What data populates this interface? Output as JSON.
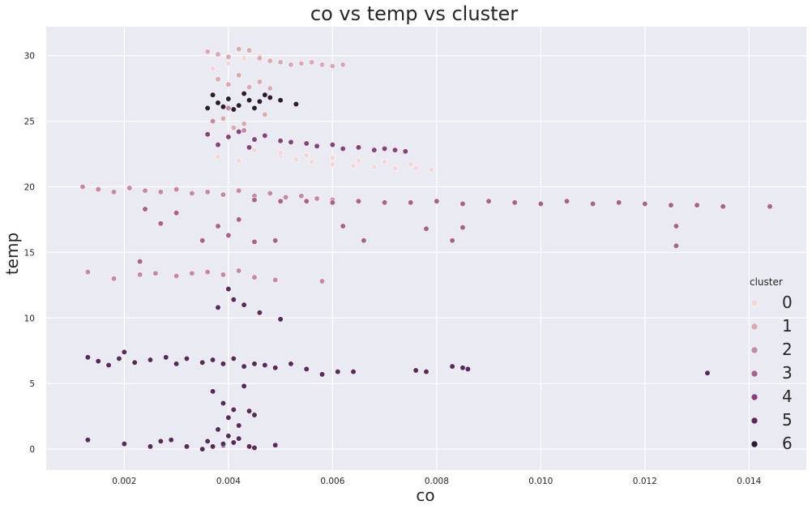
{
  "chart_data": {
    "type": "scatter",
    "title": "co vs temp vs cluster",
    "xlabel": "co",
    "ylabel": "temp",
    "xlim": [
      0.0005,
      0.0151
    ],
    "ylim": [
      -1.6,
      32.2
    ],
    "x_ticks": [
      0.002,
      0.004,
      0.006,
      0.008,
      0.01,
      0.012,
      0.014
    ],
    "x_tick_labels": [
      "0.002",
      "0.004",
      "0.006",
      "0.008",
      "0.010",
      "0.012",
      "0.014"
    ],
    "y_ticks": [
      0,
      5,
      10,
      15,
      20,
      25,
      30
    ],
    "y_tick_labels": [
      "0",
      "5",
      "10",
      "15",
      "20",
      "25",
      "30"
    ],
    "grid": true,
    "legend": {
      "title": "cluster",
      "placement": "right",
      "entries": [
        "0",
        "1",
        "2",
        "3",
        "4",
        "5",
        "6"
      ]
    },
    "colors": {
      "background": "#eaeaf2",
      "grid": "#ffffff",
      "0": "#f2d6d8",
      "1": "#dca9b2",
      "2": "#c48a9f",
      "3": "#a8628d",
      "4": "#83447c",
      "5": "#582a5c",
      "6": "#2d1b34"
    },
    "series": [
      {
        "name": "0",
        "x": [
          0.0037,
          0.004,
          0.0043,
          0.0046,
          0.005,
          0.0053,
          0.0056,
          0.006,
          0.0064,
          0.0068,
          0.0072,
          0.0076,
          0.0079,
          0.0045,
          0.005,
          0.0055,
          0.006,
          0.0065,
          0.007,
          0.0075,
          0.0042,
          0.0038
        ],
        "y": [
          29.0,
          29.4,
          29.8,
          30.0,
          22.4,
          22.1,
          21.9,
          21.7,
          21.6,
          21.5,
          21.4,
          21.4,
          21.3,
          22.8,
          22.6,
          22.4,
          22.2,
          22.0,
          21.9,
          21.7,
          22.0,
          22.3
        ]
      },
      {
        "name": "1",
        "x": [
          0.0036,
          0.0038,
          0.004,
          0.0042,
          0.0044,
          0.0046,
          0.0048,
          0.005,
          0.0052,
          0.0054,
          0.0056,
          0.0058,
          0.006,
          0.0062,
          0.0038,
          0.004,
          0.0042,
          0.0044,
          0.0046,
          0.0048,
          0.0039,
          0.0043,
          0.0047,
          0.0041
        ],
        "y": [
          30.3,
          30.1,
          29.9,
          30.5,
          30.4,
          29.8,
          29.6,
          29.5,
          29.3,
          29.4,
          29.5,
          29.3,
          29.2,
          29.3,
          28.2,
          27.8,
          28.5,
          27.6,
          28.0,
          27.5,
          25.2,
          24.8,
          25.5,
          24.5
        ]
      },
      {
        "name": "2",
        "x": [
          0.0012,
          0.0015,
          0.0018,
          0.0021,
          0.0024,
          0.0027,
          0.003,
          0.0033,
          0.0036,
          0.0039,
          0.0042,
          0.0045,
          0.0048,
          0.0051,
          0.0054,
          0.0057,
          0.006,
          0.004,
          0.0037,
          0.0043,
          0.0013,
          0.0018,
          0.0023,
          0.0026,
          0.003,
          0.0033,
          0.0036,
          0.0039,
          0.0042,
          0.0045,
          0.0049,
          0.0058
        ],
        "y": [
          20.0,
          19.8,
          19.6,
          19.9,
          19.7,
          19.6,
          19.8,
          19.5,
          19.6,
          19.4,
          19.7,
          19.3,
          19.5,
          19.2,
          19.3,
          19.1,
          19.0,
          26.0,
          25.0,
          24.3,
          13.5,
          13.0,
          13.3,
          13.4,
          13.2,
          13.4,
          13.5,
          13.3,
          13.6,
          13.1,
          12.9,
          12.8
        ]
      },
      {
        "name": "3",
        "x": [
          0.0045,
          0.005,
          0.0055,
          0.006,
          0.0065,
          0.007,
          0.0075,
          0.008,
          0.0085,
          0.009,
          0.0095,
          0.01,
          0.0105,
          0.011,
          0.0115,
          0.012,
          0.0125,
          0.013,
          0.0135,
          0.0144,
          0.0126,
          0.0126,
          0.0085,
          0.0083,
          0.0078,
          0.0066,
          0.0062,
          0.004,
          0.0042,
          0.0038,
          0.0035,
          0.003,
          0.0027,
          0.0024,
          0.0045,
          0.0049,
          0.0023
        ],
        "y": [
          19.0,
          18.9,
          18.9,
          18.8,
          18.9,
          18.8,
          18.8,
          18.9,
          18.7,
          18.9,
          18.8,
          18.7,
          18.9,
          18.7,
          18.8,
          18.7,
          18.6,
          18.6,
          18.5,
          18.5,
          17.0,
          15.5,
          16.9,
          15.9,
          16.8,
          15.9,
          17.0,
          16.3,
          17.5,
          17.0,
          15.9,
          18.0,
          17.2,
          18.3,
          15.8,
          15.9,
          14.3
        ]
      },
      {
        "name": "4",
        "x": [
          0.0036,
          0.004,
          0.0045,
          0.005,
          0.0055,
          0.006,
          0.0065,
          0.007,
          0.0072,
          0.0074,
          0.0042,
          0.0047,
          0.0052,
          0.0057,
          0.0062,
          0.0068,
          0.0038,
          0.0044
        ],
        "y": [
          24.0,
          23.8,
          23.6,
          23.5,
          23.3,
          23.2,
          23.0,
          22.9,
          22.8,
          22.7,
          24.2,
          23.9,
          23.4,
          23.1,
          22.9,
          22.8,
          23.2,
          23.0
        ]
      },
      {
        "name": "5",
        "x": [
          0.0013,
          0.0015,
          0.0017,
          0.0019,
          0.002,
          0.0022,
          0.0025,
          0.0028,
          0.003,
          0.0032,
          0.0035,
          0.0037,
          0.0039,
          0.0041,
          0.0043,
          0.0045,
          0.0047,
          0.0049,
          0.0052,
          0.0055,
          0.0058,
          0.0061,
          0.0064,
          0.0076,
          0.0078,
          0.0083,
          0.0085,
          0.0086,
          0.0132,
          0.0038,
          0.0041,
          0.004,
          0.0043,
          0.0046,
          0.005,
          0.0037,
          0.0039,
          0.0041,
          0.0043,
          0.004,
          0.0042,
          0.0044,
          0.0038,
          0.004,
          0.0045,
          0.0036,
          0.0039,
          0.0042,
          0.0044,
          0.0013,
          0.002,
          0.0025,
          0.0027,
          0.0029,
          0.0032,
          0.0035,
          0.0037,
          0.0039,
          0.0041,
          0.0045,
          0.0049
        ],
        "y": [
          7.0,
          6.7,
          6.4,
          6.9,
          7.4,
          6.6,
          6.8,
          7.0,
          6.5,
          6.9,
          6.6,
          6.8,
          6.5,
          6.9,
          6.3,
          6.5,
          6.4,
          6.2,
          6.5,
          6.1,
          5.7,
          5.9,
          5.9,
          6.0,
          5.9,
          6.3,
          6.2,
          6.1,
          5.8,
          10.8,
          11.4,
          12.2,
          11.0,
          10.4,
          9.9,
          4.4,
          3.5,
          3.0,
          4.8,
          2.4,
          1.8,
          2.9,
          1.5,
          1.0,
          2.6,
          0.6,
          0.3,
          0.8,
          0.2,
          0.7,
          0.4,
          0.2,
          0.6,
          0.7,
          0.2,
          0.0,
          0.2,
          0.4,
          0.5,
          0.1,
          0.3
        ]
      },
      {
        "name": "6",
        "x": [
          0.0036,
          0.0038,
          0.004,
          0.0042,
          0.0044,
          0.0046,
          0.0048,
          0.005,
          0.0053,
          0.0037,
          0.0039,
          0.0041,
          0.0043,
          0.0045,
          0.0047
        ],
        "y": [
          26.0,
          26.4,
          26.7,
          26.2,
          26.6,
          26.5,
          26.8,
          26.6,
          26.3,
          27.0,
          26.1,
          25.9,
          27.1,
          26.0,
          27.0
        ]
      }
    ]
  }
}
